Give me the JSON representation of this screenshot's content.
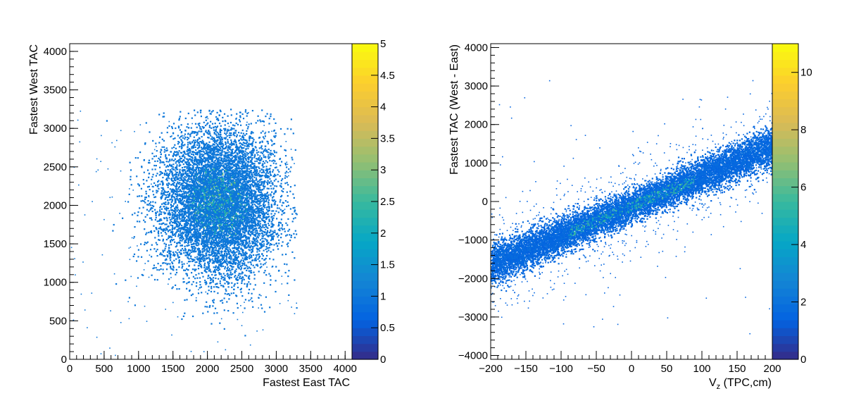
{
  "chart_data": [
    {
      "type": "heatmap",
      "xlabel": "Fastest East TAC",
      "ylabel": "Fastest West TAC",
      "xlim": [
        0,
        4100
      ],
      "ylim": [
        0,
        4100
      ],
      "x_ticks": [
        0,
        500,
        1000,
        1500,
        2000,
        2500,
        3000,
        3500,
        4000
      ],
      "y_ticks": [
        0,
        500,
        1000,
        1500,
        2000,
        2500,
        3000,
        3500,
        4000
      ],
      "x_tick_labels": [
        "0",
        "500",
        "1000",
        "1500",
        "2000",
        "2500",
        "3000",
        "3500",
        "4000"
      ],
      "y_tick_labels": [
        "0",
        "500",
        "1000",
        "1500",
        "2000",
        "2500",
        "3000",
        "3500",
        "4000"
      ],
      "colorbar": {
        "range": [
          0,
          5
        ],
        "ticks": [
          0,
          0.5,
          1,
          1.5,
          2,
          2.5,
          3,
          3.5,
          4,
          4.5,
          5
        ],
        "tick_labels": [
          "0",
          "0.5",
          "1",
          "1.5",
          "2",
          "2.5",
          "3",
          "3.5",
          "4",
          "4.5",
          "5"
        ]
      },
      "distribution": {
        "shape": "elliptical blob",
        "center": [
          2150,
          2050
        ],
        "sigma": [
          420,
          480
        ],
        "x_cut": 3290,
        "y_cut": 3260,
        "peak_count": 3
      },
      "grid": false
    },
    {
      "type": "heatmap",
      "xlabel_main": "V",
      "xlabel_sub": "z",
      "xlabel_rest": " (TPC,cm)",
      "ylabel": "Fastest TAC (West - East)",
      "xlim": [
        -200,
        200
      ],
      "ylim": [
        -4100,
        4100
      ],
      "x_ticks": [
        -200,
        -150,
        -100,
        -50,
        0,
        50,
        100,
        150,
        200
      ],
      "y_ticks": [
        -4000,
        -3000,
        -2000,
        -1000,
        0,
        1000,
        2000,
        3000,
        4000
      ],
      "x_tick_labels": [
        "−200",
        "−150",
        "−100",
        "−50",
        "0",
        "50",
        "100",
        "150",
        "200"
      ],
      "y_tick_labels": [
        "−4000",
        "−3000",
        "−2000",
        "−1000",
        "0",
        "1000",
        "2000",
        "3000",
        "4000"
      ],
      "colorbar": {
        "range": [
          0,
          11
        ],
        "ticks": [
          0,
          2,
          4,
          6,
          8,
          10
        ],
        "tick_labels": [
          "0",
          "2",
          "4",
          "6",
          "8",
          "10"
        ]
      },
      "distribution": {
        "shape": "linear band",
        "slope": 7.7,
        "intercept": -100,
        "band_sigma": 220,
        "peak_count": 6
      },
      "grid": false
    }
  ],
  "colors": {
    "palette": [
      "#352a87",
      "#0363e1",
      "#1485d4",
      "#06a7c6",
      "#38b99e",
      "#92bf73",
      "#d9ba56",
      "#fcce2e",
      "#f9fb0e"
    ],
    "axis": "#000000",
    "background": "#ffffff"
  }
}
